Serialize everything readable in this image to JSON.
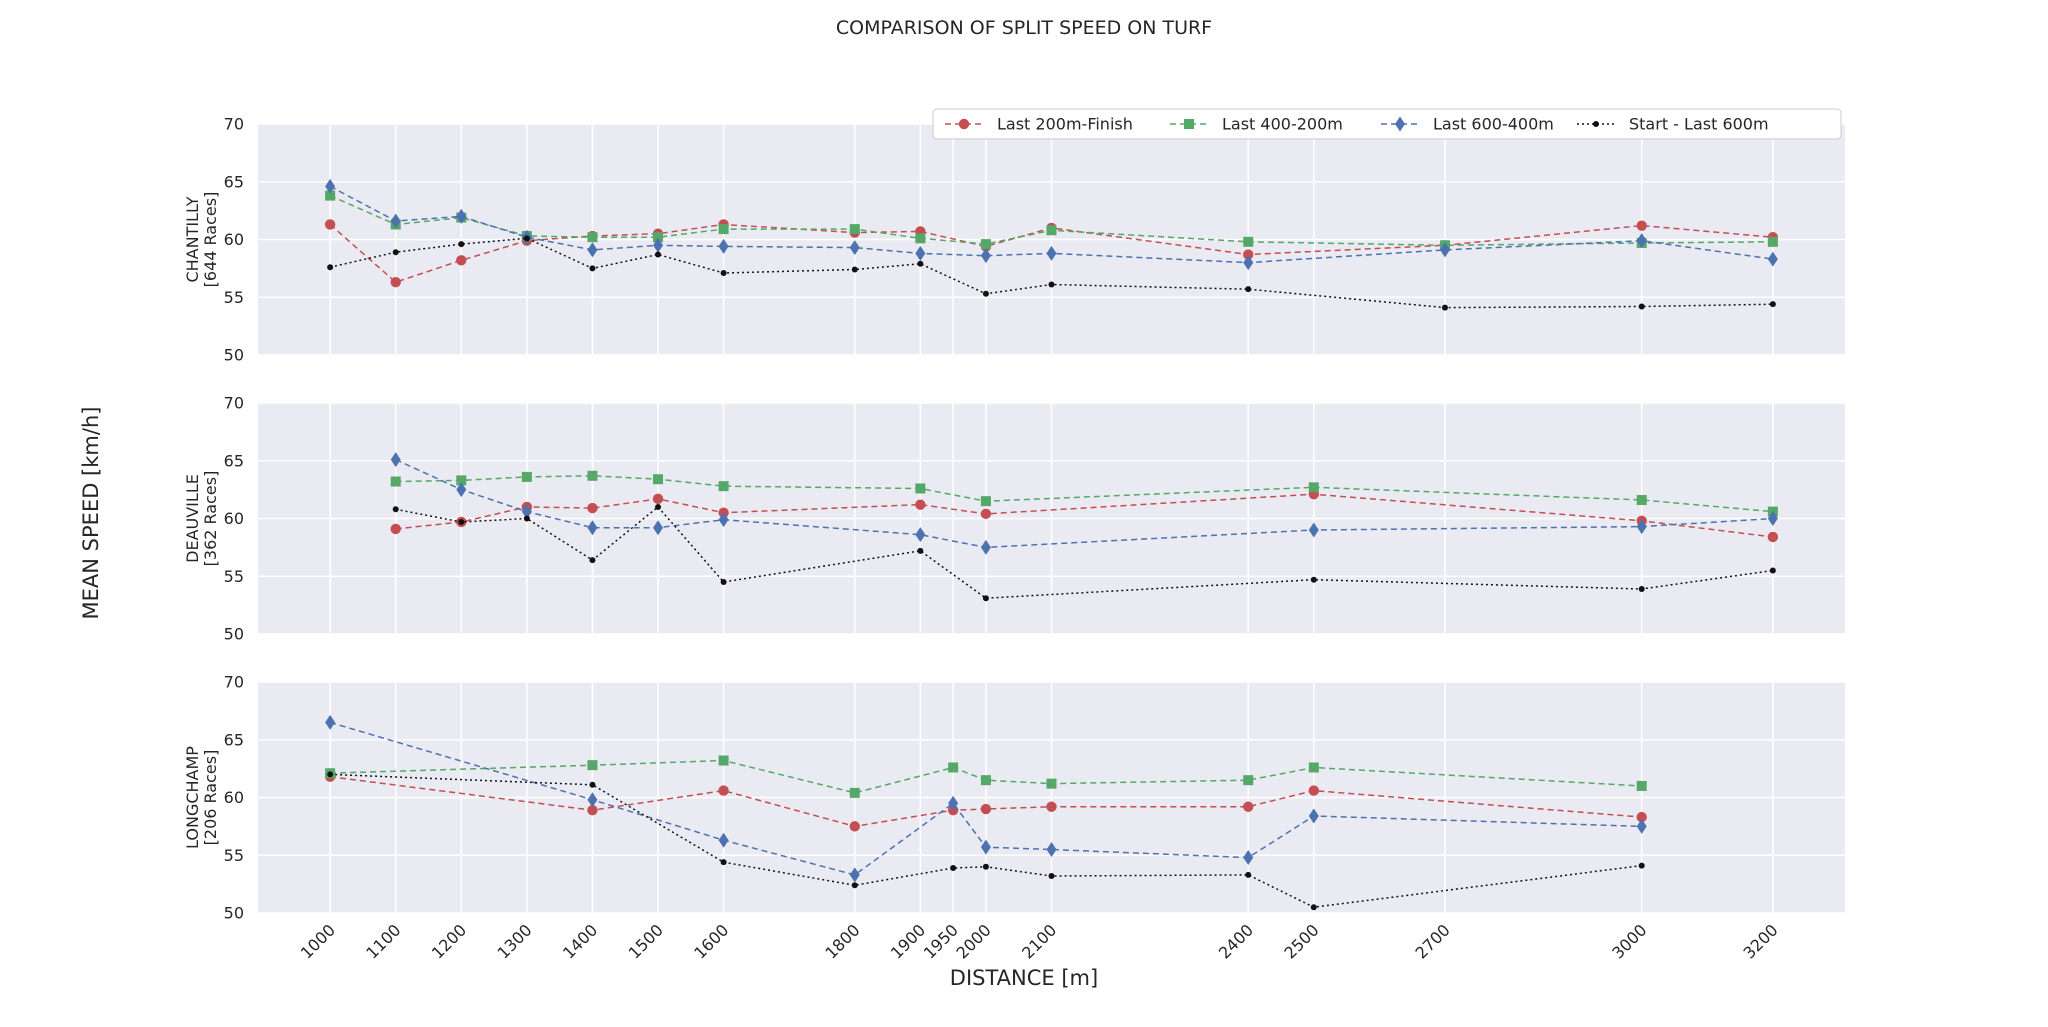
{
  "chart_data": {
    "type": "line",
    "title": "COMPARISON OF SPLIT SPEED ON TURF",
    "xlabel": "DISTANCE [m]",
    "ylabel": "MEAN SPEED [km/h]",
    "ylim": [
      50,
      70
    ],
    "yticks": [
      50,
      55,
      60,
      65,
      70
    ],
    "xlim": [
      890,
      3310
    ],
    "xticks": [
      1000,
      1100,
      1200,
      1300,
      1400,
      1500,
      1600,
      1800,
      1900,
      1950,
      2000,
      2100,
      2400,
      2500,
      2700,
      3000,
      3200
    ],
    "grid": true,
    "legend_placement": "top-right",
    "series_styles": [
      {
        "name": "Last 200m-Finish",
        "color": "#c44e52",
        "marker": "circle",
        "dash": "6,4"
      },
      {
        "name": "Last 400-200m",
        "color": "#55a868",
        "marker": "square",
        "dash": "6,4"
      },
      {
        "name": "Last 600-400m",
        "color": "#4c72b0",
        "marker": "diamond",
        "dash": "6,4"
      },
      {
        "name": "Start - Last 600m",
        "color": "#111111",
        "marker": "dot",
        "dash": "2,3"
      }
    ],
    "panels": [
      {
        "label_line1": "CHANTILLY",
        "label_line2": "[644 Races]",
        "series": [
          {
            "name": "Last 200m-Finish",
            "x": [
              1000,
              1100,
              1200,
              1300,
              1400,
              1500,
              1600,
              1800,
              1900,
              2000,
              2100,
              2400,
              2700,
              3000,
              3200
            ],
            "y": [
              61.3,
              56.3,
              58.2,
              59.9,
              60.3,
              60.5,
              61.3,
              60.6,
              60.7,
              59.4,
              61.0,
              58.7,
              59.5,
              61.2,
              60.2
            ]
          },
          {
            "name": "Last 400-200m",
            "x": [
              1000,
              1100,
              1200,
              1300,
              1400,
              1500,
              1600,
              1800,
              1900,
              2000,
              2100,
              2400,
              2700,
              3000,
              3200
            ],
            "y": [
              63.8,
              61.3,
              61.9,
              60.3,
              60.2,
              60.2,
              60.9,
              60.9,
              60.1,
              59.6,
              60.8,
              59.8,
              59.5,
              59.7,
              59.8
            ]
          },
          {
            "name": "Last 600-400m",
            "x": [
              1000,
              1100,
              1200,
              1300,
              1400,
              1500,
              1600,
              1800,
              1900,
              2000,
              2100,
              2400,
              2700,
              3000,
              3200
            ],
            "y": [
              64.6,
              61.6,
              62.0,
              60.2,
              59.1,
              59.5,
              59.4,
              59.3,
              58.8,
              58.6,
              58.8,
              58.0,
              59.1,
              59.9,
              58.3
            ]
          },
          {
            "name": "Start - Last 600m",
            "x": [
              1000,
              1100,
              1200,
              1300,
              1400,
              1500,
              1600,
              1800,
              1900,
              2000,
              2100,
              2400,
              2700,
              3000,
              3200
            ],
            "y": [
              57.6,
              58.9,
              59.6,
              60.1,
              57.5,
              58.7,
              57.1,
              57.4,
              57.9,
              55.3,
              56.1,
              55.7,
              54.1,
              54.2,
              54.4
            ]
          }
        ]
      },
      {
        "label_line1": "DEAUVILLE",
        "label_line2": "[362 Races]",
        "series": [
          {
            "name": "Last 200m-Finish",
            "x": [
              1100,
              1200,
              1300,
              1400,
              1500,
              1600,
              1900,
              2000,
              2500,
              3000,
              3200
            ],
            "y": [
              59.1,
              59.7,
              61.0,
              60.9,
              61.7,
              60.5,
              61.2,
              60.4,
              62.1,
              59.8,
              58.4
            ]
          },
          {
            "name": "Last 400-200m",
            "x": [
              1100,
              1200,
              1300,
              1400,
              1500,
              1600,
              1900,
              2000,
              2500,
              3000,
              3200
            ],
            "y": [
              63.2,
              63.3,
              63.6,
              63.7,
              63.4,
              62.8,
              62.6,
              61.5,
              62.7,
              61.6,
              60.6
            ]
          },
          {
            "name": "Last 600-400m",
            "x": [
              1100,
              1200,
              1300,
              1400,
              1500,
              1600,
              1900,
              2000,
              2500,
              3000,
              3200
            ],
            "y": [
              65.1,
              62.5,
              60.6,
              59.2,
              59.2,
              59.9,
              58.6,
              57.5,
              59.0,
              59.3,
              60.0
            ]
          },
          {
            "name": "Start - Last 600m",
            "x": [
              1100,
              1200,
              1300,
              1400,
              1500,
              1600,
              1900,
              2000,
              2500,
              3000,
              3200
            ],
            "y": [
              60.8,
              59.7,
              60.0,
              56.4,
              61.0,
              54.5,
              57.2,
              53.1,
              54.7,
              53.9,
              55.5
            ]
          }
        ]
      },
      {
        "label_line1": "LONGCHAMP",
        "label_line2": "[206 Races]",
        "series": [
          {
            "name": "Last 200m-Finish",
            "x": [
              1000,
              1400,
              1600,
              1800,
              1950,
              2000,
              2100,
              2400,
              2500,
              3000
            ],
            "y": [
              61.8,
              58.9,
              60.6,
              57.5,
              58.9,
              59.0,
              59.2,
              59.2,
              60.6,
              58.3
            ]
          },
          {
            "name": "Last 400-200m",
            "x": [
              1000,
              1400,
              1600,
              1800,
              1950,
              2000,
              2100,
              2400,
              2500,
              3000
            ],
            "y": [
              62.1,
              62.8,
              63.2,
              60.4,
              62.6,
              61.5,
              61.2,
              61.5,
              62.6,
              61.0
            ]
          },
          {
            "name": "Last 600-400m",
            "x": [
              1000,
              1400,
              1600,
              1800,
              1950,
              2000,
              2100,
              2400,
              2500,
              3000
            ],
            "y": [
              66.5,
              59.8,
              56.3,
              53.3,
              59.5,
              55.7,
              55.5,
              54.8,
              58.4,
              57.5
            ]
          },
          {
            "name": "Start - Last 600m",
            "x": [
              1000,
              1400,
              1600,
              1800,
              1950,
              2000,
              2100,
              2400,
              2500,
              3000
            ],
            "y": [
              62.0,
              61.1,
              54.4,
              52.4,
              53.9,
              54.0,
              53.2,
              53.3,
              50.5,
              54.1
            ]
          }
        ]
      }
    ]
  }
}
